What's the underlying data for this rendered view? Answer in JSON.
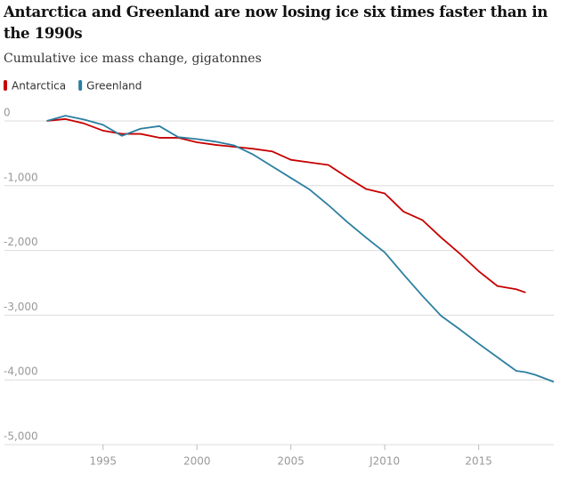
{
  "chart_data": {
    "type": "line",
    "title": "Antarctica and Greenland are now losing ice six times faster than in the 1990s",
    "subtitle": "Cumulative ice mass change, gigatonnes",
    "x": [
      1992,
      1993,
      1994,
      1995,
      1996,
      1997,
      1998,
      1999,
      2000,
      2001,
      2002,
      2003,
      2004,
      2005,
      2006,
      2007,
      2008,
      2009,
      2010,
      2011,
      2012,
      2013,
      2014,
      2015,
      2016,
      2017,
      2017.5,
      2018,
      2019
    ],
    "series": [
      {
        "name": "Antarctica",
        "color": "#c70000",
        "values": [
          0,
          30,
          -40,
          -150,
          -200,
          -200,
          -260,
          -260,
          -330,
          -370,
          -400,
          -430,
          -470,
          -600,
          -640,
          -680,
          -870,
          -1050,
          -1120,
          -1400,
          -1530,
          -1800,
          -2050,
          -2320,
          -2550,
          -2600,
          -2650,
          null,
          null
        ]
      },
      {
        "name": "Greenland",
        "color": "#2b7fa0",
        "values": [
          0,
          80,
          20,
          -60,
          -230,
          -120,
          -80,
          -250,
          -280,
          -320,
          -380,
          -520,
          -700,
          -880,
          -1060,
          -1300,
          -1560,
          -1800,
          -2030,
          -2370,
          -2700,
          -3010,
          -3220,
          -3440,
          -3650,
          -3860,
          -3880,
          -3920,
          -4030
        ]
      }
    ],
    "xlim": [
      1989.75,
      2019
    ],
    "xticks": [
      1995,
      2000,
      2005,
      {
        "value": 2010,
        "label": "J2010"
      },
      2015
    ],
    "ylim": [
      -5000,
      0
    ],
    "yticks": [
      0,
      {
        "value": -1000,
        "label": "-1,000"
      },
      {
        "value": -2000,
        "label": "-2,000"
      },
      {
        "value": -3000,
        "label": "-3,000"
      },
      {
        "value": -4000,
        "label": "-4,000"
      },
      {
        "value": -5000,
        "label": "-5,000"
      }
    ],
    "grid": true
  }
}
